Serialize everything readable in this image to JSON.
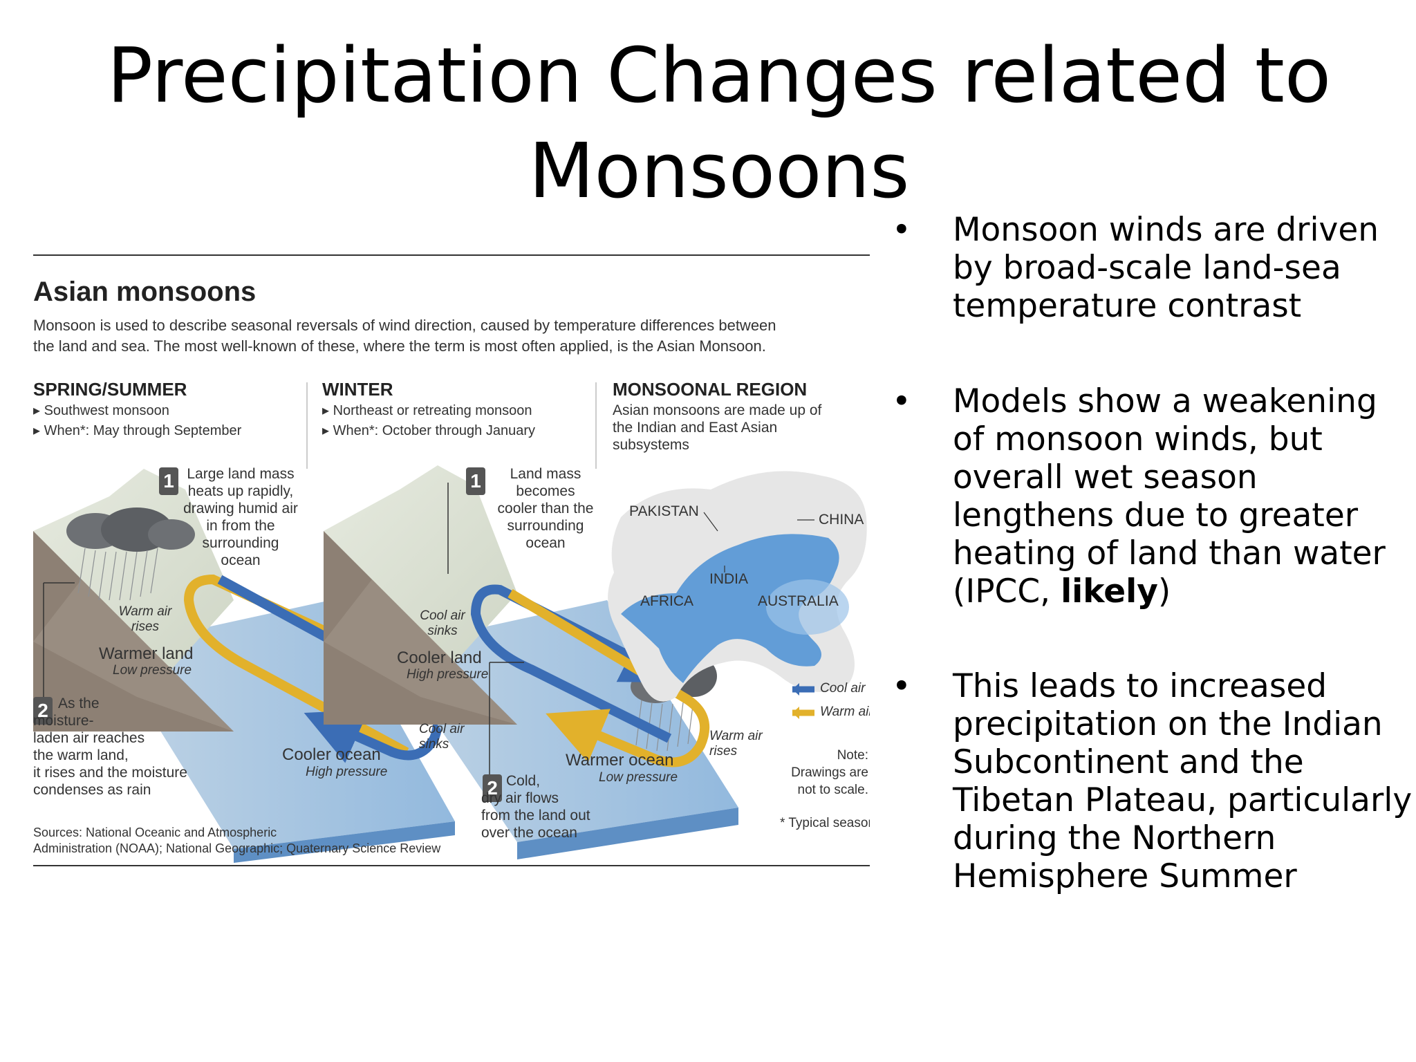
{
  "slide": {
    "title": "Precipitation Changes related to Monsoons",
    "bullets": [
      {
        "dot": "•",
        "text": "Monsoon winds are driven by broad-scale land-sea temperature contrast"
      },
      {
        "dot": "•",
        "text_before": "Models show a weakening of monsoon winds, but overall wet season lengthens due to greater heating of land than water (IPCC, ",
        "text_bold": "likely",
        "text_after": ")"
      },
      {
        "dot": "•",
        "text": "This leads to increased precipitation on the Indian Subcontinent and the Tibetan Plateau, particularly during the Northern Hemisphere Summer"
      }
    ]
  },
  "infographic": {
    "title": "Asian monsoons",
    "intro_line1": "Monsoon is used to describe seasonal reversals of wind direction, caused by temperature differences between",
    "intro_line2": "the land and sea. The most well-known of these, where the term is most often applied, is the Asian Monsoon.",
    "spring": {
      "heading": "SPRING/SUMMER",
      "item1": "▸ Southwest monsoon",
      "item2": "▸ When*: May through September",
      "step1_num": "1",
      "step1_text": "Large land mass\nheats up rapidly,\ndrawing humid air\nin from the\nsurrounding\nocean",
      "warm_rises": "Warm air\nrises",
      "land": "Warmer land",
      "land_pressure": "Low pressure",
      "step2_num": "2",
      "step2_text": "As the\nmoisture-\nladen air reaches\nthe warm land,\nit rises and the moisture\ncondenses as rain",
      "ocean": "Cooler ocean",
      "ocean_pressure": "High pressure",
      "cool_sinks": "Cool air\nsinks"
    },
    "winter": {
      "heading": "WINTER",
      "item1": "▸ Northeast or retreating monsoon",
      "item2": "▸ When*: October through January",
      "step1_num": "1",
      "step1_text": "Land mass\nbecomes\ncooler than the\nsurrounding\nocean",
      "cool_sinks": "Cool air\nsinks",
      "land": "Cooler land",
      "land_pressure": "High pressure",
      "step2_num": "2",
      "step2_text": "Cold,\ndry air flows\nfrom the land out\nover the ocean",
      "ocean": "Warmer ocean",
      "ocean_pressure": "Low pressure",
      "warm_rises": "Warm air\nrises"
    },
    "region": {
      "heading": "MONSOONAL REGION",
      "text": "Asian monsoons are made up of\nthe Indian and East Asian\nsubsystems",
      "labels": [
        "PAKISTAN",
        "CHINA",
        "INDIA",
        "AFRICA",
        "AUSTRALIA"
      ]
    },
    "legend": {
      "cool": "Cool air",
      "warm": "Warm air"
    },
    "note": "Note:\nDrawings are\nnot to scale.",
    "typical": "* Typical season",
    "sources_line1": "Sources: National Oceanic and Atmospheric",
    "sources_line2": "Administration (NOAA); National Geographic; Quaternary Science Review",
    "colors": {
      "cool_air": "#3b6db5",
      "warm_air": "#e2b12b",
      "land": "#d8ded0",
      "ground": "#8d8074",
      "ocean": "#8eb6dc",
      "region": "#4a8fd4"
    }
  }
}
